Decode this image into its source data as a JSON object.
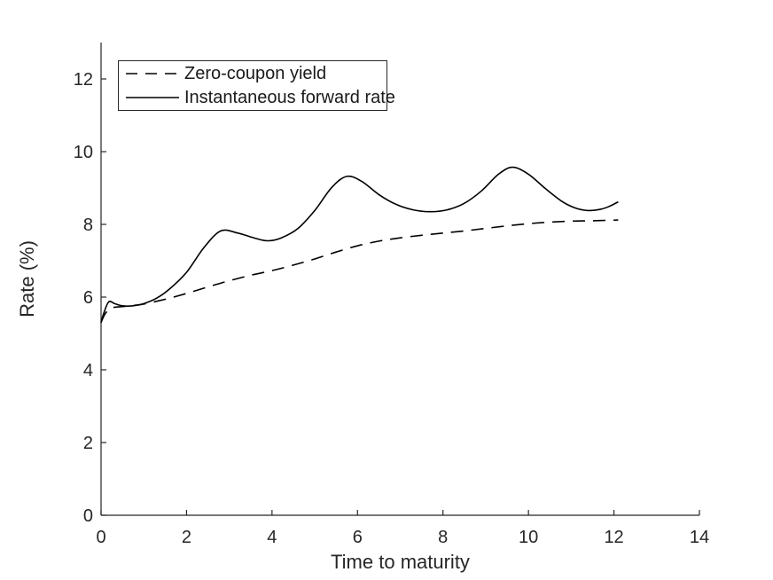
{
  "figure": {
    "background": "#ffffff",
    "axis_color": "#262626",
    "tick_label_color": "#262626",
    "line_color": "#000000"
  },
  "chart_data": {
    "type": "line",
    "xlabel": "Time to maturity",
    "ylabel": "Rate (%)",
    "xlim": [
      0,
      14
    ],
    "ylim": [
      0,
      13
    ],
    "xticks": [
      0,
      2,
      4,
      6,
      8,
      10,
      12,
      14
    ],
    "yticks": [
      0,
      2,
      4,
      6,
      8,
      10,
      12
    ],
    "grid": false,
    "legend_position": "top-left",
    "series": [
      {
        "name": "Zero-coupon yield",
        "style": "dashed",
        "color": "#000000",
        "x": [
          0,
          0.1,
          0.25,
          0.5,
          0.75,
          1.0,
          1.5,
          2.0,
          2.5,
          3.0,
          3.5,
          4.0,
          4.5,
          5.0,
          5.5,
          6.0,
          6.5,
          7.0,
          7.5,
          8.0,
          8.5,
          9.0,
          9.5,
          10.0,
          10.5,
          11.0,
          11.5,
          12.1
        ],
        "y": [
          5.3,
          5.55,
          5.7,
          5.74,
          5.77,
          5.81,
          5.94,
          6.1,
          6.28,
          6.45,
          6.6,
          6.73,
          6.88,
          7.05,
          7.24,
          7.41,
          7.54,
          7.63,
          7.7,
          7.76,
          7.82,
          7.89,
          7.96,
          8.02,
          8.06,
          8.09,
          8.1,
          8.12
        ]
      },
      {
        "name": "Instantaneous forward rate",
        "style": "solid",
        "color": "#000000",
        "x": [
          0,
          0.07,
          0.18,
          0.32,
          0.5,
          0.75,
          1.0,
          1.3,
          1.6,
          2.0,
          2.4,
          2.8,
          3.2,
          3.6,
          3.9,
          4.2,
          4.6,
          5.0,
          5.4,
          5.75,
          6.1,
          6.5,
          6.9,
          7.3,
          7.7,
          8.1,
          8.5,
          8.9,
          9.3,
          9.63,
          10.0,
          10.4,
          10.8,
          11.1,
          11.4,
          11.7,
          11.9,
          12.1
        ],
        "y": [
          5.3,
          5.58,
          5.87,
          5.82,
          5.76,
          5.76,
          5.82,
          5.97,
          6.22,
          6.68,
          7.35,
          7.82,
          7.76,
          7.62,
          7.55,
          7.62,
          7.88,
          8.38,
          9.02,
          9.32,
          9.18,
          8.82,
          8.55,
          8.4,
          8.35,
          8.4,
          8.58,
          8.92,
          9.38,
          9.57,
          9.38,
          8.98,
          8.62,
          8.45,
          8.38,
          8.42,
          8.5,
          8.62
        ]
      }
    ]
  },
  "legend": {
    "items": [
      {
        "label": "Zero-coupon yield"
      },
      {
        "label": "Instantaneous forward rate"
      }
    ]
  }
}
